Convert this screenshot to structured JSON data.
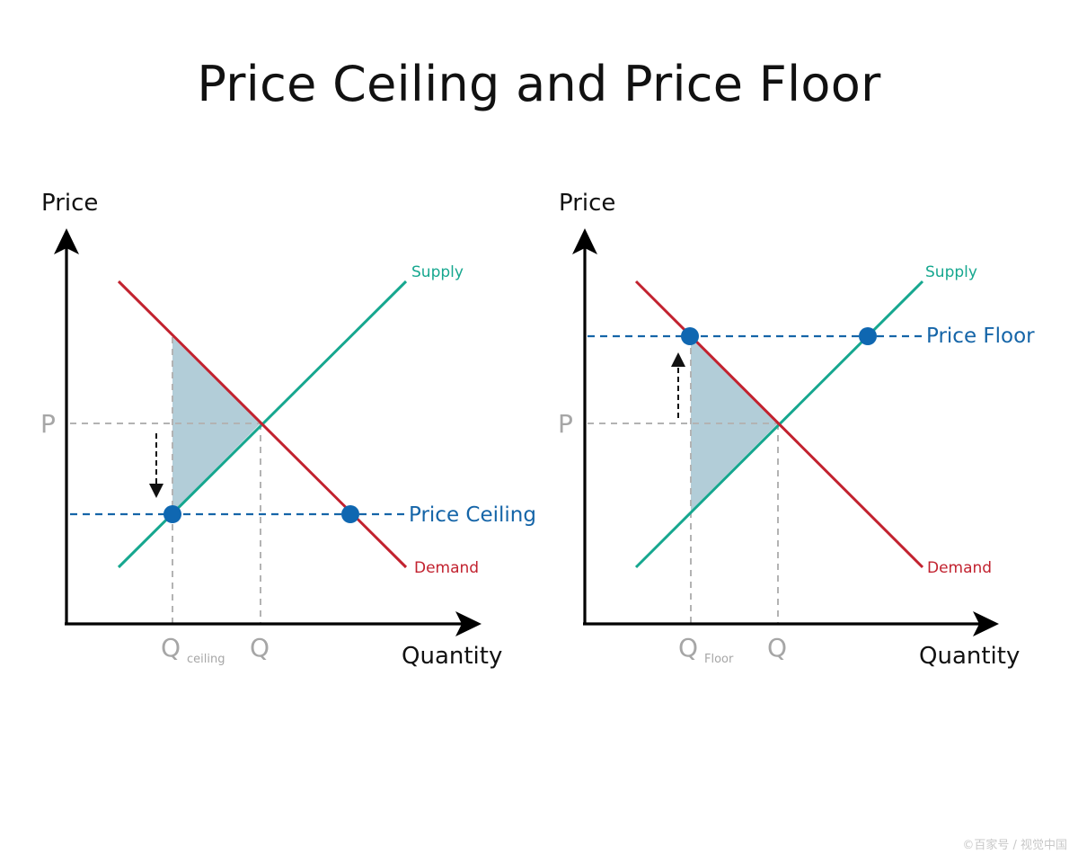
{
  "title": "Price Ceiling and Price Floor",
  "colors": {
    "supply": "#16a78f",
    "demand": "#c2222f",
    "control": "#1565a8",
    "shade": "#aecad6",
    "guide": "#b3b3b3"
  },
  "left_diagram": {
    "y_axis_label": "Price",
    "x_axis_label": "Quantity",
    "supply_label": "Supply",
    "demand_label": "Demand",
    "control_label": "Price Ceiling",
    "price_tick": "P",
    "quantity_tick": "Q",
    "control_quantity_tick": "Q",
    "control_quantity_subscript": "ceiling"
  },
  "right_diagram": {
    "y_axis_label": "Price",
    "x_axis_label": "Quantity",
    "supply_label": "Supply",
    "demand_label": "Demand",
    "control_label": "Price Floor",
    "price_tick": "P",
    "quantity_tick": "Q",
    "control_quantity_tick": "Q",
    "control_quantity_subscript": "Floor"
  },
  "watermark": "©百家号 / 视觉中国"
}
